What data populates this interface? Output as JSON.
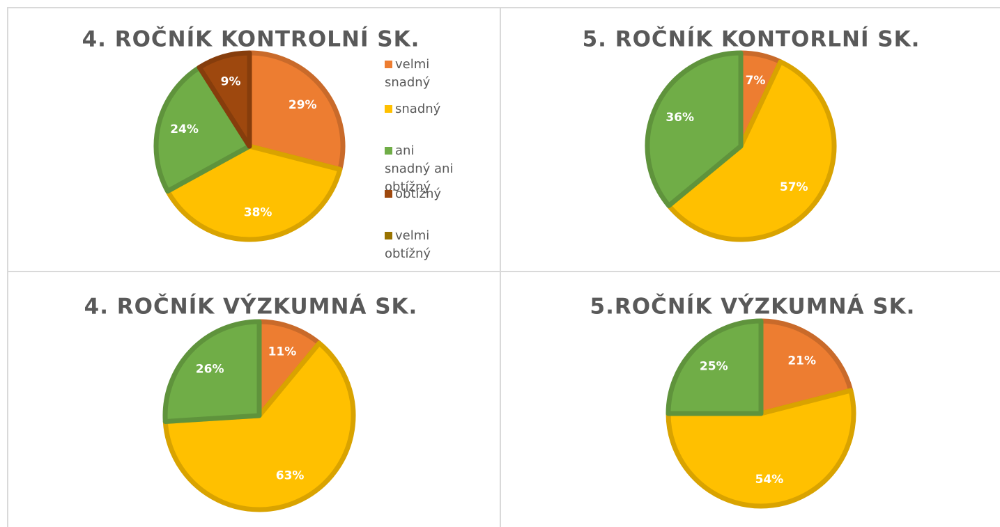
{
  "chart_data": [
    {
      "type": "pie",
      "title": "4. ROČNÍK KONTROLNÍ SK.",
      "categories": [
        "velmi snadný",
        "snadný",
        "ani snadný ani obtížný",
        "obtížný",
        "velmi obtížný"
      ],
      "colors": [
        "#ed7d31",
        "#ffc000",
        "#70ad47",
        "#9e480e",
        "#997300"
      ],
      "values": [
        29,
        38,
        24,
        9,
        0
      ],
      "value_labels": [
        "29%",
        "38%",
        "24%",
        "9%",
        null
      ],
      "legend": "right"
    },
    {
      "type": "pie",
      "title": "5. ROČNÍK KONTORLNÍ SK.",
      "colors": [
        "#ed7d31",
        "#ffc000",
        "#70ad47"
      ],
      "values": [
        7,
        57,
        36
      ],
      "value_labels": [
        "7%",
        "57%",
        "36%"
      ]
    },
    {
      "type": "pie",
      "title": "4. ROČNÍK VÝZKUMNÁ SK.",
      "colors": [
        "#ed7d31",
        "#ffc000",
        "#70ad47"
      ],
      "values": [
        11,
        63,
        26
      ],
      "value_labels": [
        "11%",
        "63%",
        "26%"
      ]
    },
    {
      "type": "pie",
      "title": "5.ROČNÍK VÝZKUMNÁ SK.",
      "colors": [
        "#ed7d31",
        "#ffc000",
        "#70ad47"
      ],
      "values": [
        21,
        54,
        25
      ],
      "value_labels": [
        "21%",
        "54%",
        "25%"
      ]
    }
  ]
}
